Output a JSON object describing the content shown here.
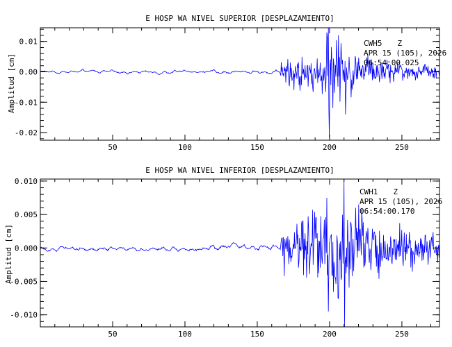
{
  "colors": {
    "trace": "#0000ff",
    "frame": "#000000",
    "background": "#ffffff"
  },
  "chart_data": [
    {
      "type": "line",
      "title": "E HOSP WA NIVEL SUPERIOR [DESPLAZAMIENTO]",
      "ylabel": "Amplitud [cm]",
      "xlabel": "",
      "xlim": [
        0,
        276
      ],
      "ylim": [
        -0.0225,
        0.0145
      ],
      "xticks": [
        50,
        100,
        150,
        200,
        250
      ],
      "yticks": [
        -0.02,
        -0.01,
        0.0,
        0.01
      ],
      "ytick_labels": [
        "-0.02",
        "-0.01",
        "0.00",
        "0.01"
      ],
      "grid": false,
      "annotation": {
        "station": "CWH5",
        "component": "Z",
        "date": "APR 15 (105), 2026",
        "time": "06:54:00.025"
      },
      "trace_profile": [
        {
          "t": 0,
          "amp": 0.0006
        },
        {
          "t": 165,
          "amp": 0.0008
        },
        {
          "t": 168,
          "amp": 0.004
        },
        {
          "t": 175,
          "amp": 0.004
        },
        {
          "t": 185,
          "amp": 0.0045
        },
        {
          "t": 195,
          "amp": 0.006
        },
        {
          "t": 200,
          "amp": 0.012
        },
        {
          "t": 210,
          "amp": 0.008
        },
        {
          "t": 225,
          "amp": 0.004
        },
        {
          "t": 250,
          "amp": 0.0025
        },
        {
          "t": 276,
          "amp": 0.0015
        }
      ],
      "peaks": [
        {
          "t": 199,
          "y": 0.0145
        },
        {
          "t": 200,
          "y": -0.0215
        },
        {
          "t": 206,
          "y": 0.012
        },
        {
          "t": 211,
          "y": -0.014
        }
      ]
    },
    {
      "type": "line",
      "title": "E HOSP WA NIVEL INFERIOR [DESPLAZAMIENTO]",
      "ylabel": "Amplitud [cm]",
      "xlabel": "",
      "xlim": [
        0,
        276
      ],
      "ylim": [
        -0.0118,
        0.0103
      ],
      "xticks": [
        50,
        100,
        150,
        200,
        250
      ],
      "yticks": [
        -0.01,
        -0.005,
        0.0,
        0.005,
        0.01
      ],
      "ytick_labels": [
        "-0.010",
        "-0.005",
        "0.000",
        "0.005",
        "0.010"
      ],
      "grid": false,
      "annotation": {
        "station": "CWH1",
        "component": "Z",
        "date": "APR 15 (105), 2026",
        "time": "06:54:00.170"
      },
      "trace_profile": [
        {
          "t": 0,
          "amp": 0.0005
        },
        {
          "t": 165,
          "amp": 0.0006
        },
        {
          "t": 168,
          "amp": 0.003
        },
        {
          "t": 180,
          "amp": 0.0035
        },
        {
          "t": 195,
          "amp": 0.005
        },
        {
          "t": 205,
          "amp": 0.0065
        },
        {
          "t": 215,
          "amp": 0.005
        },
        {
          "t": 240,
          "amp": 0.003
        },
        {
          "t": 276,
          "amp": 0.0015
        }
      ],
      "peaks": [
        {
          "t": 198,
          "y": 0.0075
        },
        {
          "t": 199,
          "y": -0.0095
        },
        {
          "t": 210,
          "y": 0.0103
        },
        {
          "t": 210.5,
          "y": -0.0118
        }
      ]
    }
  ]
}
